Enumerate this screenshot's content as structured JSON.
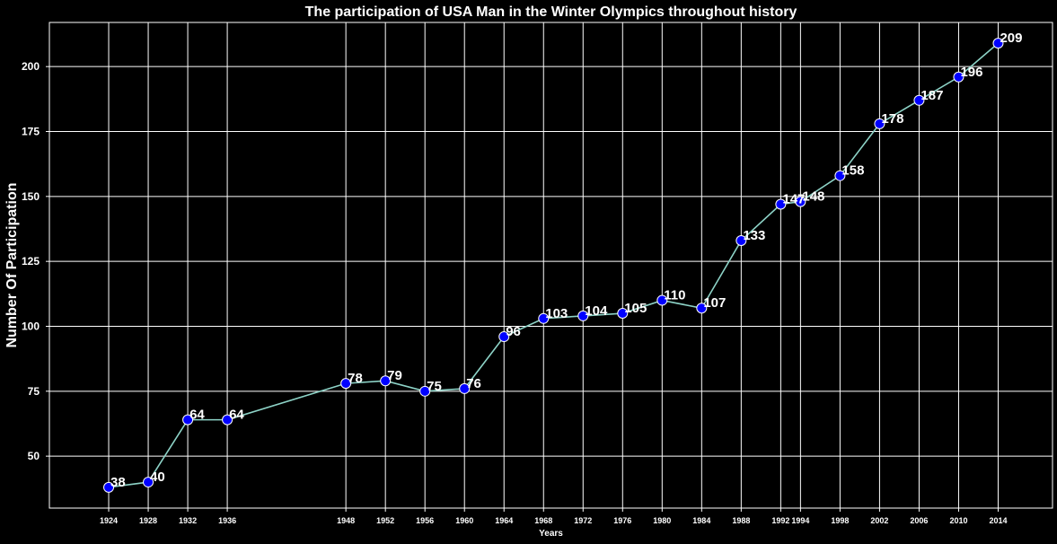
{
  "chart_data": {
    "type": "line",
    "title": "The participation of USA Man in the Winter Olympics throughout history",
    "xlabel": "Years",
    "ylabel": "Number Of Participation",
    "x": [
      1924,
      1928,
      1932,
      1936,
      1948,
      1952,
      1956,
      1960,
      1964,
      1968,
      1972,
      1976,
      1980,
      1984,
      1988,
      1992,
      1994,
      1998,
      2002,
      2006,
      2010,
      2014
    ],
    "values": [
      38,
      40,
      64,
      64,
      78,
      79,
      75,
      76,
      96,
      103,
      104,
      105,
      110,
      107,
      133,
      147,
      148,
      158,
      178,
      187,
      196,
      209
    ],
    "xlim": [
      1918,
      2019.5
    ],
    "ylim": [
      30,
      217
    ],
    "yticks": [
      50,
      75,
      100,
      125,
      150,
      175,
      200
    ],
    "grid": true,
    "colors": {
      "background": "#000000",
      "line": "#8dd3c7",
      "marker_fill": "#0000ff",
      "marker_edge": "#ffffff",
      "grid": "#ffffff",
      "text": "#ffffff"
    }
  }
}
